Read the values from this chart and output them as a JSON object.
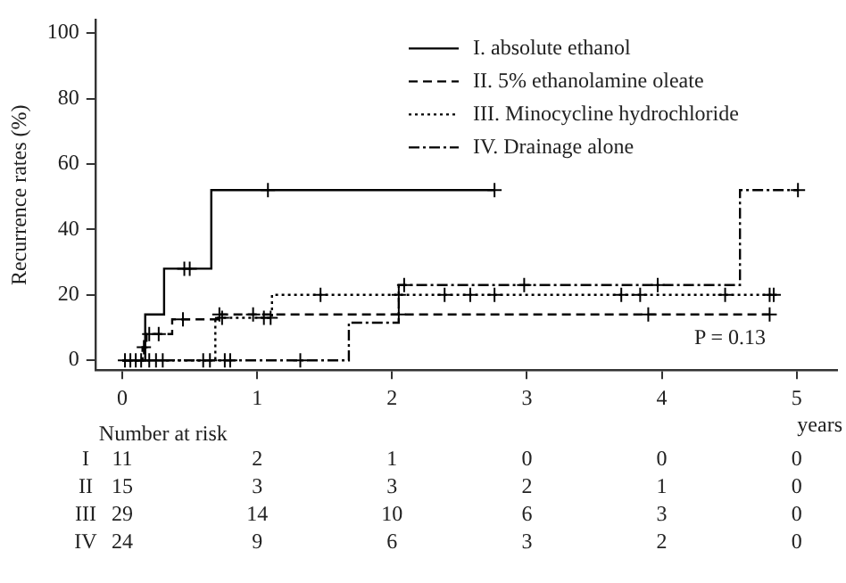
{
  "chart_data": {
    "type": "step",
    "ylabel": "Recurrence rates (%)",
    "xlabel": "years",
    "xlim": [
      -0.2,
      5.3
    ],
    "xticks": [
      0,
      1,
      2,
      3,
      4,
      5
    ],
    "ylim": [
      -3,
      104
    ],
    "yticks": [
      0,
      20,
      40,
      60,
      80,
      100
    ],
    "grid": false,
    "legend": "top right",
    "annotations": [
      "P = 0.13",
      "Number at risk",
      "I 11 2 1 0 0 0",
      "II 15 3 3 2 1 0",
      "III 29 14 10 6 3 0",
      "IV 24 9 6 3 2 0"
    ],
    "series": [
      {
        "name": "I. absolute ethanol",
        "color": "#000000",
        "line_style": "solid",
        "marker": "none",
        "x": [
          0,
          0.17,
          0.31,
          0.66,
          2.76
        ],
        "values": [
          0,
          14,
          28,
          52,
          52
        ]
      },
      {
        "name": "II. 5% ethanolamine oleate",
        "color": "#000000",
        "line_style": "dashed",
        "marker": "none",
        "x": [
          0,
          0.15,
          0.18,
          0.37,
          0.71,
          4.8
        ],
        "values": [
          0,
          4,
          8,
          12.5,
          14,
          14
        ]
      },
      {
        "name": "III. Minocycline hydrochloride",
        "color": "#000000",
        "line_style": "dotted",
        "marker": "none",
        "x": [
          0,
          0.69,
          1.11,
          4.85
        ],
        "values": [
          0,
          13,
          20,
          20
        ]
      },
      {
        "name": "IV. Drainage alone",
        "color": "#000000",
        "line_style": "dashdot",
        "marker": "none",
        "x": [
          0,
          1.68,
          2.05,
          4.58,
          5.01
        ],
        "values": [
          0,
          11.5,
          23,
          52,
          52
        ]
      },
      {
        "type": "scatter",
        "color": "#000000",
        "marker": "cross",
        "x": [
          0.46,
          0.5,
          1.08,
          2.76
        ],
        "values": [
          28,
          28,
          52,
          52
        ]
      },
      {
        "type": "scatter",
        "color": "#000000",
        "marker": "cross",
        "x": [
          0.16,
          0.2,
          0.27,
          0.72,
          0.97,
          1.05,
          1.1,
          2.05,
          3.9,
          4.8
        ],
        "values": [
          4,
          8,
          8,
          14,
          14,
          13,
          13,
          14,
          14,
          14
        ]
      },
      {
        "type": "scatter",
        "color": "#000000",
        "marker": "cross",
        "x": [
          0.45,
          0.74,
          1.47,
          2.05,
          2.39,
          2.58,
          2.76,
          3.7,
          3.84,
          4.47,
          4.8,
          4.83
        ],
        "values": [
          12.5,
          13,
          20,
          20,
          20,
          20,
          20,
          20,
          20,
          20,
          20,
          20
        ]
      },
      {
        "type": "scatter",
        "color": "#000000",
        "marker": "cross",
        "x": [
          0.02,
          0.06,
          0.1,
          0.14,
          0.2,
          0.25,
          0.3,
          0.6,
          0.65,
          0.76,
          0.8,
          1.32,
          2.09,
          2.98,
          3.97,
          5.01
        ],
        "values": [
          0,
          0,
          0,
          0,
          0,
          0,
          0,
          0,
          0,
          0,
          0,
          0,
          23,
          23,
          23,
          52
        ]
      }
    ]
  }
}
